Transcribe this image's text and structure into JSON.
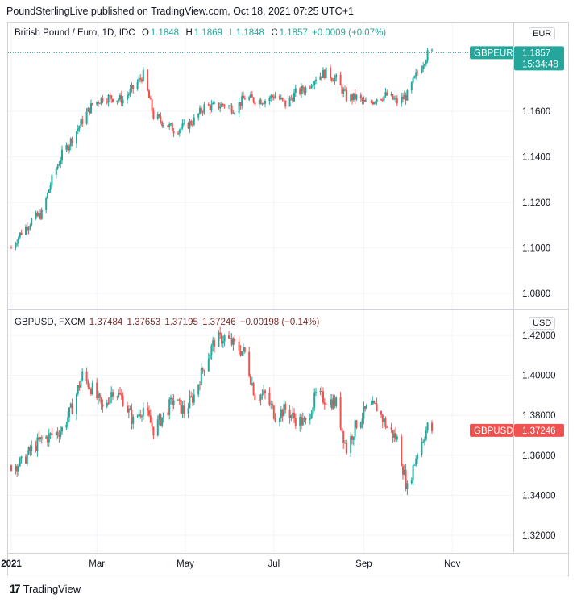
{
  "header": {
    "published_text": "PoundSterlingLive published on TradingView.com, Oct 18, 2021 07:25 UTC+1"
  },
  "footer": {
    "brand": "TradingView",
    "logo_glyph": "17"
  },
  "colors": {
    "up": "#26a69a",
    "down": "#ef5350",
    "grid": "#f0f3fa",
    "border": "#d1d4dc"
  },
  "chart_data": [
    {
      "type": "candlestick",
      "pane": "top",
      "title": "British Pound / Euro, 1D, IDC",
      "symbol": "GBPEUR",
      "legend": {
        "O": "1.1848",
        "H": "1.1869",
        "L": "1.1848",
        "C": "1.1857",
        "change": "+0.0009 (+0.07%)"
      },
      "currency": "EUR",
      "last_price_label": "1.1857",
      "countdown_label": "15:34:48",
      "y_ticks": [
        "1.1600",
        "1.1400",
        "1.1200",
        "1.1000",
        "1.0800"
      ],
      "ylim": [
        1.074,
        1.196
      ],
      "x_range": [
        "2021-01-01",
        "2021-11-25"
      ],
      "daily_closes_approx": [
        [
          "2021-01-01",
          1.1
        ],
        [
          "2021-01-08",
          1.107
        ],
        [
          "2021-01-15",
          1.112
        ],
        [
          "2021-01-22",
          1.115
        ],
        [
          "2021-01-29",
          1.13
        ],
        [
          "2021-02-05",
          1.141
        ],
        [
          "2021-02-12",
          1.148
        ],
        [
          "2021-02-19",
          1.156
        ],
        [
          "2021-02-26",
          1.163
        ],
        [
          "2021-03-05",
          1.166
        ],
        [
          "2021-03-12",
          1.166
        ],
        [
          "2021-03-19",
          1.165
        ],
        [
          "2021-03-26",
          1.17
        ],
        [
          "2021-04-02",
          1.176
        ],
        [
          "2021-04-09",
          1.158
        ],
        [
          "2021-04-16",
          1.155
        ],
        [
          "2021-04-23",
          1.152
        ],
        [
          "2021-04-30",
          1.153
        ],
        [
          "2021-05-07",
          1.156
        ],
        [
          "2021-05-14",
          1.162
        ],
        [
          "2021-05-21",
          1.162
        ],
        [
          "2021-05-28",
          1.163
        ],
        [
          "2021-06-04",
          1.161
        ],
        [
          "2021-06-11",
          1.166
        ],
        [
          "2021-06-18",
          1.165
        ],
        [
          "2021-06-25",
          1.165
        ],
        [
          "2021-07-02",
          1.167
        ],
        [
          "2021-07-09",
          1.163
        ],
        [
          "2021-07-16",
          1.168
        ],
        [
          "2021-07-23",
          1.17
        ],
        [
          "2021-07-30",
          1.175
        ],
        [
          "2021-08-06",
          1.177
        ],
        [
          "2021-08-13",
          1.174
        ],
        [
          "2021-08-20",
          1.166
        ],
        [
          "2021-08-27",
          1.166
        ],
        [
          "2021-09-03",
          1.163
        ],
        [
          "2021-09-10",
          1.166
        ],
        [
          "2021-09-17",
          1.167
        ],
        [
          "2021-09-24",
          1.164
        ],
        [
          "2021-10-01",
          1.167
        ],
        [
          "2021-10-08",
          1.177
        ],
        [
          "2021-10-15",
          1.185
        ],
        [
          "2021-10-18",
          1.1857
        ]
      ]
    },
    {
      "type": "candlestick",
      "pane": "bottom",
      "title": "GBPUSD, FXCM",
      "symbol": "GBPUSD",
      "legend": {
        "O": "1.37484",
        "H": "1.37653",
        "L": "1.37195",
        "C": "1.37246",
        "change": "−0.00198 (−0.14%)"
      },
      "currency": "USD",
      "last_price_label": "1.37246",
      "y_ticks": [
        "1.42000",
        "1.40000",
        "1.38000",
        "1.36000",
        "1.34000",
        "1.32000"
      ],
      "ylim": [
        1.311,
        1.428
      ],
      "x_range": [
        "2021-01-01",
        "2021-11-25"
      ],
      "daily_closes_approx": [
        [
          "2021-01-01",
          1.355
        ],
        [
          "2021-01-08",
          1.356
        ],
        [
          "2021-01-15",
          1.363
        ],
        [
          "2021-01-22",
          1.368
        ],
        [
          "2021-01-29",
          1.37
        ],
        [
          "2021-02-05",
          1.373
        ],
        [
          "2021-02-12",
          1.384
        ],
        [
          "2021-02-19",
          1.4
        ],
        [
          "2021-02-26",
          1.393
        ],
        [
          "2021-03-05",
          1.383
        ],
        [
          "2021-03-12",
          1.393
        ],
        [
          "2021-03-19",
          1.388
        ],
        [
          "2021-03-26",
          1.377
        ],
        [
          "2021-04-02",
          1.384
        ],
        [
          "2021-04-09",
          1.373
        ],
        [
          "2021-04-16",
          1.38
        ],
        [
          "2021-04-23",
          1.388
        ],
        [
          "2021-04-30",
          1.382
        ],
        [
          "2021-05-07",
          1.39
        ],
        [
          "2021-05-14",
          1.405
        ],
        [
          "2021-05-21",
          1.417
        ],
        [
          "2021-05-28",
          1.419
        ],
        [
          "2021-06-04",
          1.415
        ],
        [
          "2021-06-11",
          1.411
        ],
        [
          "2021-06-18",
          1.39
        ],
        [
          "2021-06-25",
          1.39
        ],
        [
          "2021-07-02",
          1.38
        ],
        [
          "2021-07-09",
          1.383
        ],
        [
          "2021-07-16",
          1.378
        ],
        [
          "2021-07-23",
          1.376
        ],
        [
          "2021-07-30",
          1.39
        ],
        [
          "2021-08-06",
          1.388
        ],
        [
          "2021-08-13",
          1.386
        ],
        [
          "2021-08-20",
          1.363
        ],
        [
          "2021-08-27",
          1.376
        ],
        [
          "2021-09-03",
          1.383
        ],
        [
          "2021-09-10",
          1.384
        ],
        [
          "2021-09-17",
          1.374
        ],
        [
          "2021-09-24",
          1.368
        ],
        [
          "2021-10-01",
          1.343
        ],
        [
          "2021-10-08",
          1.362
        ],
        [
          "2021-10-15",
          1.374
        ],
        [
          "2021-10-18",
          1.37246
        ]
      ]
    }
  ],
  "time_axis": {
    "labels": [
      {
        "text": "2021",
        "date": "2021-01-01",
        "bold": true
      },
      {
        "text": "Mar",
        "date": "2021-03-01",
        "bold": false
      },
      {
        "text": "May",
        "date": "2021-05-01",
        "bold": false
      },
      {
        "text": "Jul",
        "date": "2021-07-01",
        "bold": false
      },
      {
        "text": "Sep",
        "date": "2021-09-01",
        "bold": false
      },
      {
        "text": "Nov",
        "date": "2021-11-01",
        "bold": false
      }
    ]
  }
}
